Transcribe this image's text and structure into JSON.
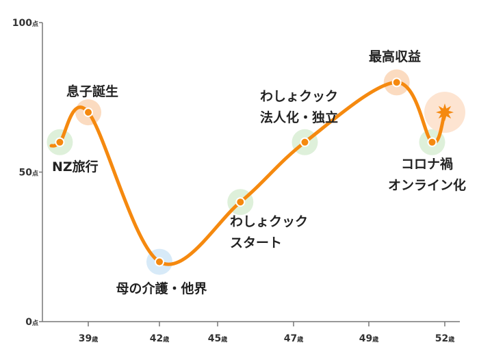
{
  "chart_data": {
    "type": "line",
    "title": "",
    "xlabel": "",
    "ylabel": "",
    "ylim": [
      0,
      100
    ],
    "y_ticks": [
      {
        "num": "100",
        "unit": "点",
        "value": 100
      },
      {
        "num": "50",
        "unit": "点",
        "value": 50
      },
      {
        "num": "0",
        "unit": "点",
        "value": 0
      }
    ],
    "x_ticks": [
      {
        "num": "39",
        "unit": "歳",
        "age": 39
      },
      {
        "num": "42",
        "unit": "歳",
        "age": 42
      },
      {
        "num": "45",
        "unit": "歳",
        "age": 45
      },
      {
        "num": "47",
        "unit": "歳",
        "age": 47
      },
      {
        "num": "49",
        "unit": "歳",
        "age": 49
      },
      {
        "num": "52",
        "unit": "歳",
        "age": 52
      }
    ],
    "events": [
      {
        "age": 37.8,
        "value": 60,
        "label": [
          "NZ旅行"
        ],
        "halo": "#dcefd8",
        "label_side": "below-right"
      },
      {
        "age": 39,
        "value": 70,
        "label": [
          "息子誕生"
        ],
        "halo": "#fbd9bd",
        "label_side": "above"
      },
      {
        "age": 42,
        "value": 20,
        "label": [
          "母の介護・他界"
        ],
        "halo": "#d5e9f8",
        "label_side": "below"
      },
      {
        "age": 45.6,
        "value": 40,
        "label": [
          "わしょクック",
          "スタート"
        ],
        "halo": "#dcefd8",
        "label_side": "below-right"
      },
      {
        "age": 47.3,
        "value": 60,
        "label": [
          "わしょクック",
          "法人化・独立"
        ],
        "halo": "#dcefd8",
        "label_side": "above-left"
      },
      {
        "age": 50.1,
        "value": 80,
        "label": [
          "最高収益"
        ],
        "halo": "#fbd9bd",
        "label_side": "above"
      },
      {
        "age": 51.5,
        "value": 60,
        "label": [
          "コロナ禍",
          "オンライン化"
        ],
        "halo": "#dcefd8",
        "label_side": "below"
      },
      {
        "age": 52,
        "value": 70,
        "label": [],
        "halo": "#fde3cf",
        "marker": "star"
      }
    ],
    "line_color": "#f5890f",
    "grid": false
  }
}
